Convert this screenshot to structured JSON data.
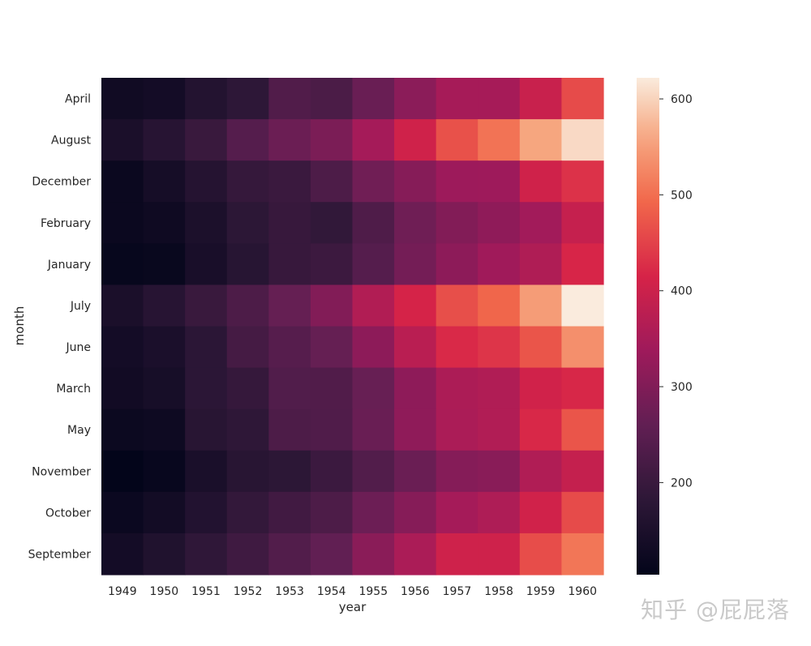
{
  "chart_data": {
    "type": "heatmap",
    "xlabel": "year",
    "ylabel": "month",
    "x": [
      "1949",
      "1950",
      "1951",
      "1952",
      "1953",
      "1954",
      "1955",
      "1956",
      "1957",
      "1958",
      "1959",
      "1960"
    ],
    "y": [
      "April",
      "August",
      "December",
      "February",
      "January",
      "July",
      "June",
      "March",
      "May",
      "November",
      "October",
      "September"
    ],
    "values": [
      [
        129,
        135,
        163,
        181,
        235,
        227,
        269,
        313,
        348,
        348,
        396,
        461
      ],
      [
        148,
        170,
        199,
        242,
        272,
        293,
        347,
        405,
        467,
        505,
        559,
        606
      ],
      [
        118,
        140,
        166,
        194,
        201,
        229,
        278,
        306,
        336,
        337,
        405,
        432
      ],
      [
        118,
        126,
        150,
        180,
        196,
        188,
        233,
        277,
        301,
        318,
        342,
        391
      ],
      [
        112,
        115,
        145,
        171,
        196,
        204,
        242,
        284,
        315,
        340,
        360,
        417
      ],
      [
        148,
        170,
        199,
        230,
        264,
        302,
        364,
        413,
        465,
        491,
        548,
        622
      ],
      [
        135,
        149,
        178,
        218,
        243,
        264,
        315,
        374,
        422,
        435,
        472,
        535
      ],
      [
        132,
        141,
        178,
        193,
        236,
        235,
        267,
        317,
        356,
        362,
        406,
        419
      ],
      [
        121,
        125,
        172,
        183,
        229,
        234,
        270,
        318,
        355,
        363,
        420,
        472
      ],
      [
        104,
        114,
        146,
        172,
        180,
        203,
        237,
        271,
        305,
        310,
        362,
        390
      ],
      [
        119,
        133,
        162,
        191,
        211,
        229,
        274,
        306,
        347,
        359,
        407,
        461
      ],
      [
        136,
        158,
        184,
        209,
        237,
        259,
        312,
        355,
        404,
        404,
        463,
        508
      ]
    ],
    "vmin": 104,
    "vmax": 622,
    "colormap": "rocket",
    "colorbar": {
      "ticks": [
        200,
        300,
        400,
        500,
        600
      ]
    },
    "grid": false
  },
  "watermark": "知乎 @屁屁落"
}
